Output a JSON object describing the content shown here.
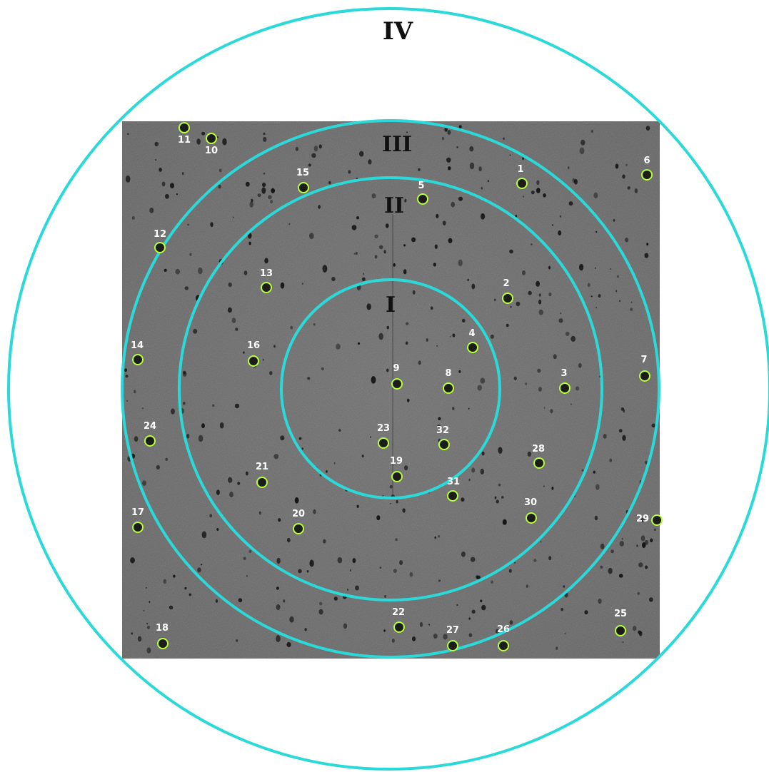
{
  "image": {
    "kind": "x-ray diffraction pattern",
    "colors": {
      "background": "#ffffff",
      "detector": "#6b6b6b",
      "ring": "#2bd9d9",
      "spot_marker": "#b8ff3a",
      "label_text_on_detector": "#ffffff",
      "ring_label_text": "#111111"
    }
  },
  "rings": [
    {
      "label": "I"
    },
    {
      "label": "II"
    },
    {
      "label": "III"
    },
    {
      "label": "IV"
    }
  ],
  "spots": [
    {
      "label": "1"
    },
    {
      "label": "2"
    },
    {
      "label": "3"
    },
    {
      "label": "4"
    },
    {
      "label": "5"
    },
    {
      "label": "6"
    },
    {
      "label": "7"
    },
    {
      "label": "8"
    },
    {
      "label": "9"
    },
    {
      "label": "10"
    },
    {
      "label": "11"
    },
    {
      "label": "12"
    },
    {
      "label": "13"
    },
    {
      "label": "14"
    },
    {
      "label": "15"
    },
    {
      "label": "16"
    },
    {
      "label": "17"
    },
    {
      "label": "18"
    },
    {
      "label": "19"
    },
    {
      "label": "20"
    },
    {
      "label": "21"
    },
    {
      "label": "22"
    },
    {
      "label": "23"
    },
    {
      "label": "24"
    },
    {
      "label": "25"
    },
    {
      "label": "26"
    },
    {
      "label": "27"
    },
    {
      "label": "28"
    },
    {
      "label": "29"
    },
    {
      "label": "30"
    },
    {
      "label": "31"
    },
    {
      "label": "32"
    }
  ]
}
